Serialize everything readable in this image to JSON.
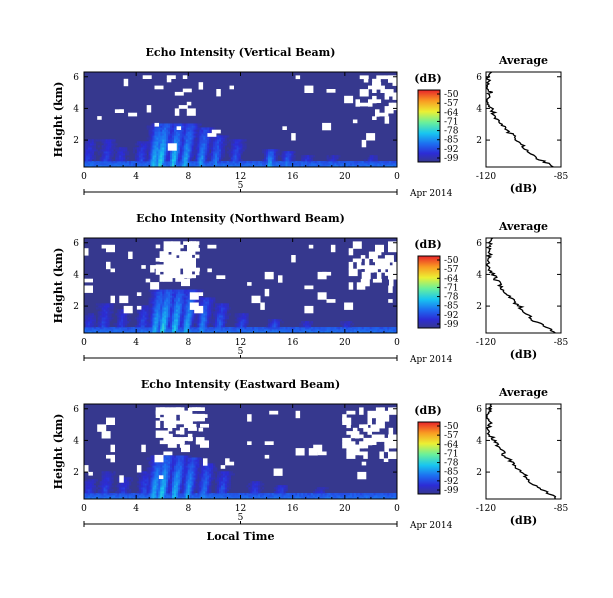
{
  "chart_data": [
    {
      "type": "heatmap",
      "title": "Echo Intensity (Vertical Beam)",
      "ylabel": "Height (km)",
      "xlabel": "",
      "x_ticks": [
        "0",
        "4",
        "8",
        "12",
        "16",
        "20",
        "0"
      ],
      "y_ticks": [
        "2",
        "4",
        "6"
      ],
      "xlim": [
        0,
        24
      ],
      "ylim": [
        0.3,
        6.3
      ],
      "date_axis": {
        "center": "5",
        "label": "Apr 2014"
      },
      "colorbar": {
        "label": "(dB)",
        "ticks": [
          "-50",
          "-57",
          "-64",
          "-71",
          "-78",
          "-85",
          "-92",
          "-99"
        ],
        "range": [
          -99,
          -50
        ]
      },
      "background_db": -99,
      "echo_events": [
        {
          "t": 0.2,
          "top": 2.0,
          "peak": -90
        },
        {
          "t": 1.6,
          "top": 2.0,
          "peak": -89
        },
        {
          "t": 2.7,
          "top": 1.6,
          "peak": -90
        },
        {
          "t": 4.3,
          "top": 1.9,
          "peak": -88
        },
        {
          "t": 5.3,
          "top": 3.0,
          "peak": -79
        },
        {
          "t": 5.8,
          "top": 3.0,
          "peak": -76
        },
        {
          "t": 6.8,
          "top": 3.0,
          "peak": -78
        },
        {
          "t": 7.7,
          "top": 3.0,
          "peak": -80
        },
        {
          "t": 8.9,
          "top": 2.8,
          "peak": -82
        },
        {
          "t": 10.0,
          "top": 2.3,
          "peak": -84
        },
        {
          "t": 11.5,
          "top": 2.0,
          "peak": -87
        },
        {
          "t": 14.2,
          "top": 1.4,
          "peak": -80
        },
        {
          "t": 15.5,
          "top": 1.3,
          "peak": -84
        },
        {
          "t": 17.0,
          "top": 1.0,
          "peak": -88
        },
        {
          "t": 19.0,
          "top": 1.0,
          "peak": -90
        },
        {
          "t": 22.0,
          "top": 1.0,
          "peak": -90
        }
      ],
      "missing_data_regions": [
        {
          "t": [
            4.5,
            8.5
          ],
          "h": [
            4.0,
            6.3
          ],
          "density": 0.12
        },
        {
          "t": [
            20.5,
            24.0
          ],
          "h": [
            3.5,
            6.3
          ],
          "density": 0.22
        },
        {
          "t": [
            0,
            24
          ],
          "h": [
            1.8,
            6.3
          ],
          "density": 0.02
        }
      ],
      "average_profile": {
        "title": "Average",
        "xlabel": "(dB)",
        "x_ticks": [
          "-120",
          "-85"
        ],
        "xlim": [
          -120,
          -85
        ],
        "y_ticks": [
          "2",
          "4",
          "6"
        ],
        "ylim": [
          0.3,
          6.3
        ],
        "height": [
          0.3,
          0.6,
          1.0,
          1.4,
          1.8,
          2.2,
          2.6,
          3.0,
          3.4,
          3.8,
          4.2,
          4.6,
          5.0,
          5.4,
          5.8,
          6.2
        ],
        "db": [
          -88,
          -92,
          -98,
          -101,
          -104,
          -107,
          -110,
          -113,
          -115,
          -117,
          -119,
          -120,
          -118,
          -120,
          -119,
          -118
        ]
      }
    },
    {
      "type": "heatmap",
      "title": "Echo Intensity (Northward Beam)",
      "ylabel": "Height (km)",
      "xlabel": "",
      "x_ticks": [
        "0",
        "4",
        "8",
        "12",
        "16",
        "20",
        "0"
      ],
      "y_ticks": [
        "2",
        "4",
        "6"
      ],
      "xlim": [
        0,
        24
      ],
      "ylim": [
        0.3,
        6.3
      ],
      "date_axis": {
        "center": "5",
        "label": "Apr 2014"
      },
      "colorbar": {
        "label": "(dB)",
        "ticks": [
          "-50",
          "-57",
          "-64",
          "-71",
          "-78",
          "-85",
          "-92",
          "-99"
        ],
        "range": [
          -99,
          -50
        ]
      },
      "background_db": -99,
      "echo_events": [
        {
          "t": 0.3,
          "top": 1.5,
          "peak": -90
        },
        {
          "t": 1.4,
          "top": 2.2,
          "peak": -89
        },
        {
          "t": 2.8,
          "top": 1.8,
          "peak": -90
        },
        {
          "t": 4.4,
          "top": 2.0,
          "peak": -88
        },
        {
          "t": 5.4,
          "top": 3.0,
          "peak": -80
        },
        {
          "t": 6.0,
          "top": 3.0,
          "peak": -77
        },
        {
          "t": 6.9,
          "top": 3.0,
          "peak": -78
        },
        {
          "t": 7.8,
          "top": 3.0,
          "peak": -80
        },
        {
          "t": 9.0,
          "top": 2.6,
          "peak": -83
        },
        {
          "t": 10.3,
          "top": 2.2,
          "peak": -86
        },
        {
          "t": 12.0,
          "top": 1.6,
          "peak": -88
        },
        {
          "t": 14.5,
          "top": 1.2,
          "peak": -86
        },
        {
          "t": 17.0,
          "top": 1.0,
          "peak": -89
        },
        {
          "t": 20.0,
          "top": 1.0,
          "peak": -90
        }
      ],
      "missing_data_regions": [
        {
          "t": [
            5.5,
            8.8
          ],
          "h": [
            4.0,
            6.3
          ],
          "density": 0.5
        },
        {
          "t": [
            20.3,
            24.0
          ],
          "h": [
            3.5,
            6.3
          ],
          "density": 0.3
        },
        {
          "t": [
            0,
            24
          ],
          "h": [
            1.8,
            6.3
          ],
          "density": 0.03
        }
      ],
      "average_profile": {
        "title": "Average",
        "xlabel": "(dB)",
        "x_ticks": [
          "-120",
          "-85"
        ],
        "xlim": [
          -120,
          -85
        ],
        "y_ticks": [
          "2",
          "4",
          "6"
        ],
        "ylim": [
          0.3,
          6.3
        ],
        "height": [
          0.3,
          0.6,
          1.0,
          1.4,
          1.8,
          2.2,
          2.6,
          3.0,
          3.4,
          3.8,
          4.2,
          4.6,
          5.0,
          5.4,
          5.8,
          6.2
        ],
        "db": [
          -87,
          -91,
          -97,
          -100,
          -103,
          -106,
          -109,
          -112,
          -114,
          -116,
          -118,
          -119,
          -118,
          -119,
          -118,
          -117
        ]
      }
    },
    {
      "type": "heatmap",
      "title": "Echo Intensity (Eastward Beam)",
      "ylabel": "Height (km)",
      "xlabel": "Local Time",
      "x_ticks": [
        "0",
        "4",
        "8",
        "12",
        "16",
        "20",
        "0"
      ],
      "y_ticks": [
        "2",
        "4",
        "6"
      ],
      "xlim": [
        0,
        24
      ],
      "ylim": [
        0.3,
        6.3
      ],
      "date_axis": {
        "center": "5",
        "label": "Apr 2014"
      },
      "colorbar": {
        "label": "(dB)",
        "ticks": [
          "-50",
          "-57",
          "-64",
          "-71",
          "-78",
          "-85",
          "-92",
          "-99"
        ],
        "range": [
          -99,
          -50
        ]
      },
      "background_db": -99,
      "echo_events": [
        {
          "t": 0.3,
          "top": 1.6,
          "peak": -90
        },
        {
          "t": 1.5,
          "top": 2.0,
          "peak": -89
        },
        {
          "t": 2.9,
          "top": 1.7,
          "peak": -90
        },
        {
          "t": 4.5,
          "top": 2.0,
          "peak": -88
        },
        {
          "t": 5.3,
          "top": 3.0,
          "peak": -80
        },
        {
          "t": 5.9,
          "top": 3.0,
          "peak": -77
        },
        {
          "t": 6.9,
          "top": 3.0,
          "peak": -79
        },
        {
          "t": 7.9,
          "top": 2.9,
          "peak": -81
        },
        {
          "t": 9.1,
          "top": 2.5,
          "peak": -84
        },
        {
          "t": 10.5,
          "top": 2.0,
          "peak": -87
        },
        {
          "t": 13.0,
          "top": 1.4,
          "peak": -88
        },
        {
          "t": 15.0,
          "top": 1.2,
          "peak": -88
        },
        {
          "t": 18.0,
          "top": 1.0,
          "peak": -90
        }
      ],
      "missing_data_regions": [
        {
          "t": [
            5.5,
            9.2
          ],
          "h": [
            4.0,
            6.3
          ],
          "density": 0.45
        },
        {
          "t": [
            19.8,
            24.0
          ],
          "h": [
            3.3,
            6.3
          ],
          "density": 0.4
        },
        {
          "t": [
            0,
            24
          ],
          "h": [
            1.8,
            6.3
          ],
          "density": 0.03
        }
      ],
      "average_profile": {
        "title": "Average",
        "xlabel": "(dB)",
        "x_ticks": [
          "-120",
          "-85"
        ],
        "xlim": [
          -120,
          -85
        ],
        "y_ticks": [
          "2",
          "4",
          "6"
        ],
        "ylim": [
          0.3,
          6.3
        ],
        "height": [
          0.3,
          0.6,
          1.0,
          1.4,
          1.8,
          2.2,
          2.6,
          3.0,
          3.4,
          3.8,
          4.2,
          4.6,
          5.0,
          5.4,
          5.8,
          6.2
        ],
        "db": [
          -87,
          -90,
          -96,
          -99,
          -102,
          -105,
          -108,
          -111,
          -113,
          -115,
          -117,
          -119,
          -118,
          -120,
          -118,
          -117
        ]
      }
    }
  ]
}
